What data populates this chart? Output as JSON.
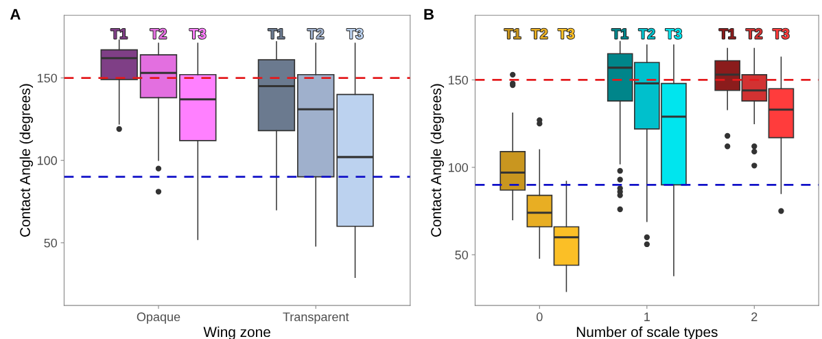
{
  "chart_data": [
    {
      "type": "box",
      "title": "A",
      "xlabel": "Wing zone",
      "ylabel": "Contact Angle (degrees)",
      "categories": [
        "Opaque",
        "Transparent"
      ],
      "ylim": [
        12,
        188
      ],
      "yticks": [
        50,
        100,
        150
      ],
      "grid": false,
      "legend": false,
      "ref_lines": [
        {
          "axis": "y",
          "value": 150,
          "color": "#e41a1c",
          "line_style": "dashed"
        },
        {
          "axis": "y",
          "value": 90,
          "color": "#1010c8",
          "line_style": "dashed"
        }
      ],
      "series": [
        {
          "name": "T1",
          "colors": [
            "#7f3f86",
            "#6b7a8f"
          ],
          "boxes": [
            {
              "low": 122,
              "q1": 149,
              "median": 162,
              "q3": 167,
              "high": 173,
              "outliers": [
                119
              ]
            },
            {
              "low": 70,
              "q1": 118,
              "median": 145,
              "q3": 161,
              "high": 172
            }
          ]
        },
        {
          "name": "T2",
          "colors": [
            "#e36fe0",
            "#9fb0cc"
          ],
          "boxes": [
            {
              "low": 100,
              "q1": 138,
              "median": 153,
              "q3": 164,
              "high": 171,
              "outliers": [
                95,
                81
              ]
            },
            {
              "low": 48,
              "q1": 90,
              "median": 131,
              "q3": 152,
              "high": 171
            }
          ]
        },
        {
          "name": "T3",
          "colors": [
            "#ff80ff",
            "#bcd2ef"
          ],
          "boxes": [
            {
              "low": 52,
              "q1": 112,
              "median": 137,
              "q3": 152,
              "high": 171
            },
            {
              "low": 29,
              "q1": 60,
              "median": 102,
              "q3": 140,
              "high": 171
            }
          ]
        }
      ]
    },
    {
      "type": "box",
      "title": "B",
      "xlabel": "Number of scale types",
      "ylabel": "Contact Angle (degrees)",
      "categories": [
        "0",
        "1",
        "2"
      ],
      "ylim": [
        21,
        187
      ],
      "yticks": [
        50,
        100,
        150
      ],
      "grid": false,
      "legend": false,
      "ref_lines": [
        {
          "axis": "y",
          "value": 150,
          "color": "#e41a1c",
          "line_style": "dashed"
        },
        {
          "axis": "y",
          "value": 90,
          "color": "#1010c8",
          "line_style": "dashed"
        }
      ],
      "series": [
        {
          "name": "T1",
          "colors": [
            "#c9961f",
            "#00858a",
            "#8b1c1c"
          ],
          "boxes": [
            {
              "low": 70,
              "q1": 87,
              "median": 97,
              "q3": 109,
              "high": 131,
              "outliers": [
                153,
                148,
                147
              ]
            },
            {
              "low": 102,
              "q1": 138,
              "median": 157,
              "q3": 165,
              "high": 172,
              "outliers": [
                98,
                93,
                88,
                86,
                84,
                76
              ]
            },
            {
              "low": 133,
              "q1": 144,
              "median": 153,
              "q3": 161,
              "high": 168,
              "outliers": [
                118,
                112
              ]
            }
          ]
        },
        {
          "name": "T2",
          "colors": [
            "#e8ae23",
            "#00c0cc",
            "#d23232"
          ],
          "boxes": [
            {
              "low": 48,
              "q1": 66,
              "median": 74,
              "q3": 84,
              "high": 110,
              "outliers": [
                127,
                125
              ]
            },
            {
              "low": 69,
              "q1": 122,
              "median": 148,
              "q3": 160,
              "high": 170,
              "outliers": [
                60,
                56
              ]
            },
            {
              "low": 125,
              "q1": 138,
              "median": 144,
              "q3": 153,
              "high": 168,
              "outliers": [
                112,
                109,
                101
              ]
            }
          ]
        },
        {
          "name": "T3",
          "colors": [
            "#fbbf26",
            "#00e5ee",
            "#ff3c3c"
          ],
          "boxes": [
            {
              "low": 29,
              "q1": 44,
              "median": 60,
              "q3": 66,
              "high": 92
            },
            {
              "low": 38,
              "q1": 90,
              "median": 129,
              "q3": 148,
              "high": 170
            },
            {
              "low": 85,
              "q1": 117,
              "median": 133,
              "q3": 145,
              "high": 163,
              "outliers": [
                75
              ]
            }
          ]
        }
      ]
    }
  ]
}
